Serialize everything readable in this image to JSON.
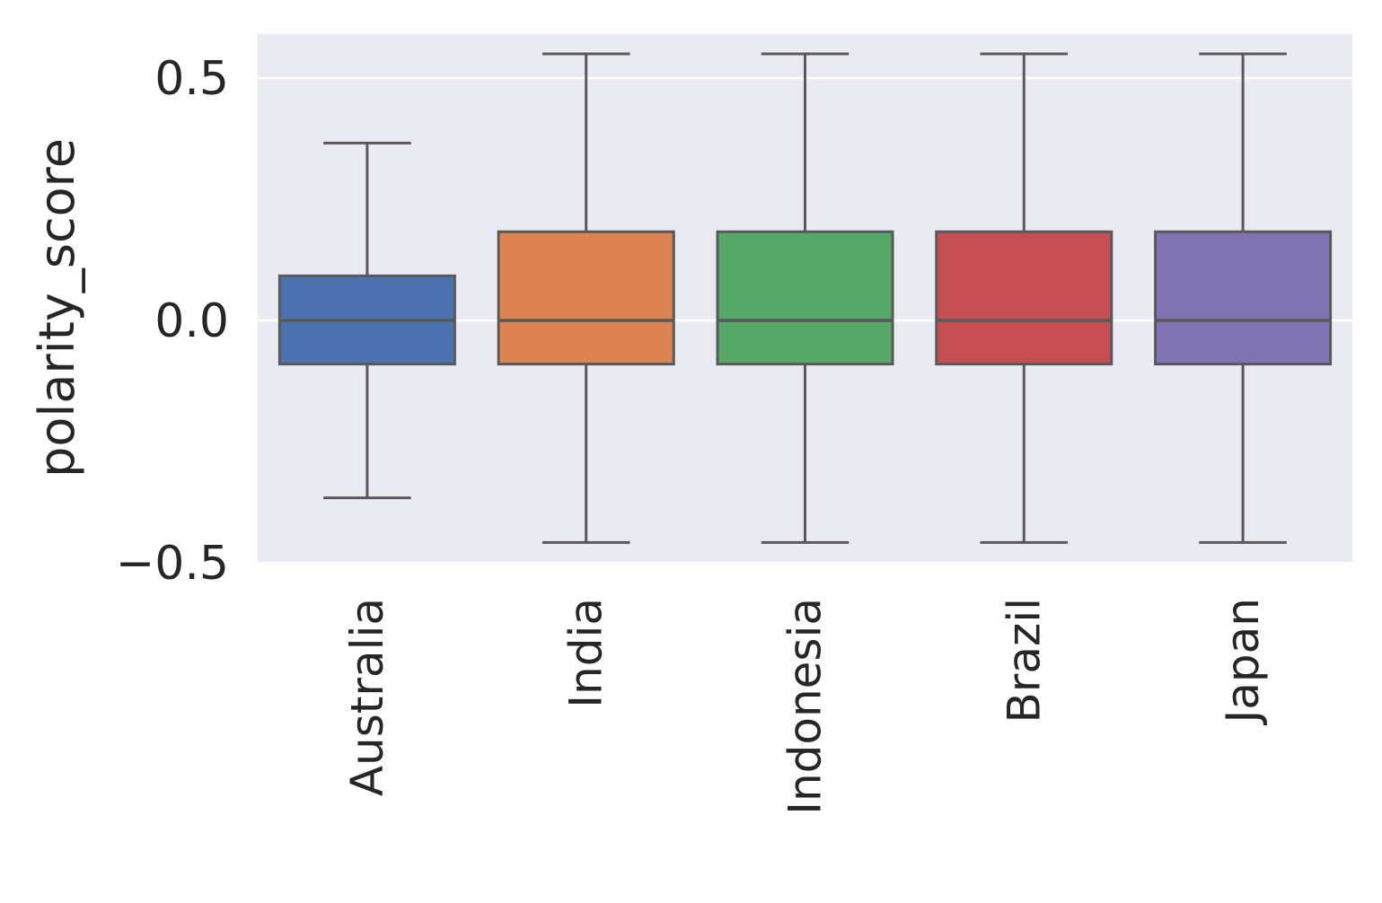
{
  "chart_data": {
    "type": "box",
    "title": "",
    "xlabel": "",
    "ylabel": "polarity_score",
    "ylim": [
      -0.5,
      0.6
    ],
    "yticks": [
      {
        "value": 0.5,
        "label": "0.5"
      },
      {
        "value": 0.0,
        "label": "0.0"
      },
      {
        "value": -0.5,
        "label": "−0.5"
      }
    ],
    "grid": true,
    "categories": [
      "Australia",
      "India",
      "Indonesia",
      "Brazil",
      "Japan"
    ],
    "boxes": [
      {
        "category": "Australia",
        "whisker_low": -0.366,
        "q1": -0.09,
        "median": 0.0,
        "q3": 0.092,
        "whisker_high": 0.366,
        "color": "#4c72b0"
      },
      {
        "category": "India",
        "whisker_low": -0.458,
        "q1": -0.09,
        "median": 0.0,
        "q3": 0.183,
        "whisker_high": 0.55,
        "color": "#dd8452"
      },
      {
        "category": "Indonesia",
        "whisker_low": -0.458,
        "q1": -0.09,
        "median": 0.0,
        "q3": 0.183,
        "whisker_high": 0.55,
        "color": "#55a868"
      },
      {
        "category": "Brazil",
        "whisker_low": -0.458,
        "q1": -0.09,
        "median": 0.0,
        "q3": 0.183,
        "whisker_high": 0.55,
        "color": "#c44e52"
      },
      {
        "category": "Japan",
        "whisker_low": -0.458,
        "q1": -0.09,
        "median": 0.0,
        "q3": 0.183,
        "whisker_high": 0.55,
        "color": "#8172b3"
      }
    ],
    "colors": {
      "plot_background": "#eaeaf2",
      "gridline": "#ffffff",
      "box_edge": "#595959"
    }
  }
}
